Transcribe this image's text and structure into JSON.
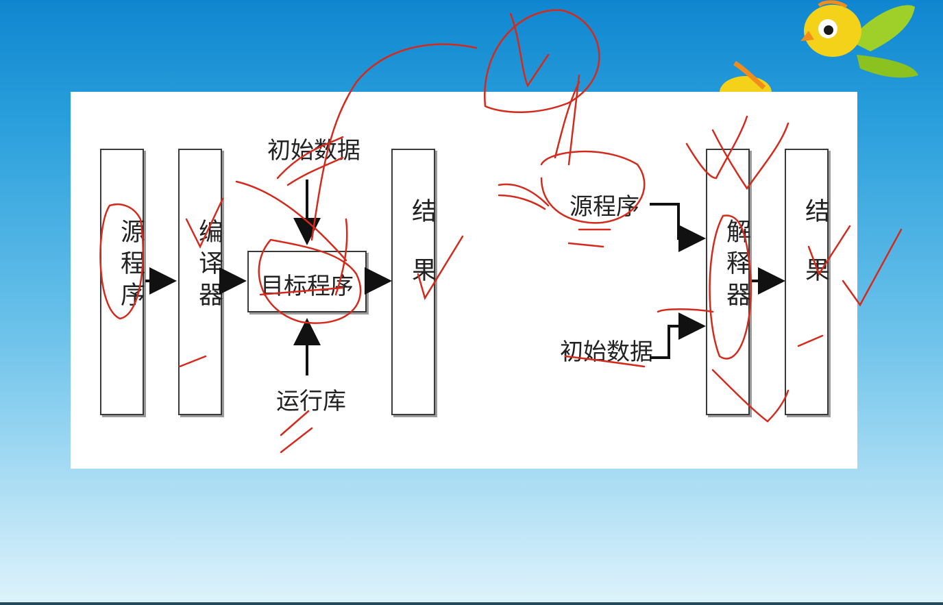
{
  "compiler": {
    "source": "源程序",
    "compiler": "编译器",
    "target": "目标程序",
    "initial_data": "初始数据",
    "runtime_lib": "运行库",
    "result": "结果"
  },
  "interpreter": {
    "source": "源程序",
    "interpreter": "解释器",
    "initial_data": "初始数据",
    "result": "结果"
  },
  "colors": {
    "ink": "#d42a1c",
    "box_border": "#3a3a3a",
    "bird_body": "#f5d21a",
    "bird_wing": "#9fd02a"
  }
}
